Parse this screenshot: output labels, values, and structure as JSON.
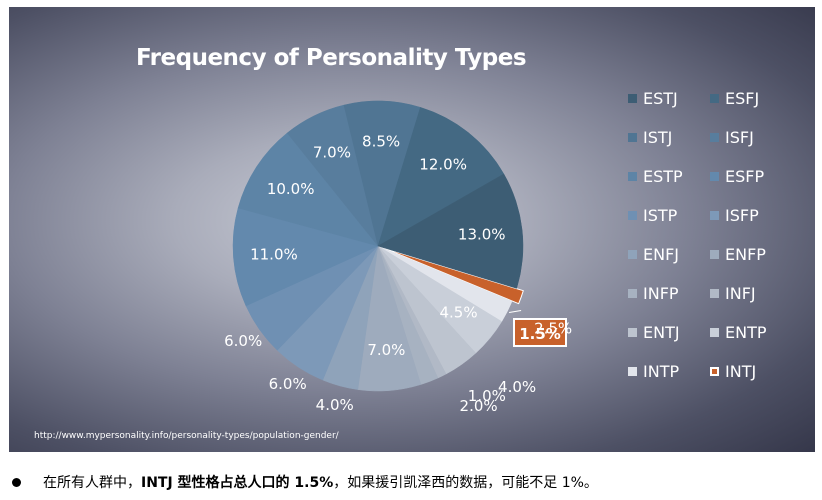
{
  "chart_data": {
    "type": "pie",
    "title": "Frequency of Personality Types",
    "slices": [
      {
        "label": "INTJ",
        "value": 1.5,
        "display": "1.5%",
        "color": "#c8612b"
      },
      {
        "label": "INTP",
        "value": 2.5,
        "display": "2.5%",
        "color": "#e2e5ec"
      },
      {
        "label": "ENTP",
        "value": 4.5,
        "display": "4.5%",
        "color": "#c9cfd9"
      },
      {
        "label": "ENTJ",
        "value": 4.0,
        "display": "4.0%",
        "color": "#bdc4cf"
      },
      {
        "label": "INFJ",
        "value": 1.0,
        "display": "1.0%",
        "color": "#b1b9c6"
      },
      {
        "label": "INFP",
        "value": 2.0,
        "display": "2.0%",
        "color": "#a7b2c1"
      },
      {
        "label": "ENFP",
        "value": 7.0,
        "display": "7.0%",
        "color": "#9eabbd"
      },
      {
        "label": "ENFJ",
        "value": 4.0,
        "display": "4.0%",
        "color": "#8fa3ba"
      },
      {
        "label": "ISFP",
        "value": 6.0,
        "display": "6.0%",
        "color": "#7d99b8"
      },
      {
        "label": "ISTP",
        "value": 6.0,
        "display": "6.0%",
        "color": "#6f90b3"
      },
      {
        "label": "ESFP",
        "value": 11.0,
        "display": "11.0%",
        "color": "#6389ad"
      },
      {
        "label": "ESTP",
        "value": 10.0,
        "display": "10.0%",
        "color": "#5d84a6"
      },
      {
        "label": "ISFJ",
        "value": 7.0,
        "display": "7.0%",
        "color": "#587d9d"
      },
      {
        "label": "ISTJ",
        "value": 8.5,
        "display": "8.5%",
        "color": "#507593"
      },
      {
        "label": "ESFJ",
        "value": 12.0,
        "display": "12.0%",
        "color": "#446983"
      },
      {
        "label": "ESTJ",
        "value": 13.0,
        "display": "13.0%",
        "color": "#3d5d74"
      }
    ],
    "highlight": "INTJ",
    "legend_order": [
      "ESTJ",
      "ESFJ",
      "ISTJ",
      "ISFJ",
      "ESTP",
      "ESFP",
      "ISTP",
      "ISFP",
      "ENFJ",
      "ENFP",
      "INFP",
      "INFJ",
      "ENTJ",
      "ENTP",
      "INTP",
      "INTJ"
    ],
    "legend_placement": "right"
  },
  "source_url": "http://www.mypersonality.info/personality-types/population-gender/",
  "note": {
    "prefix": "在所有人群中，",
    "bold": "INTJ 型性格占总人口的 1.5%",
    "suffix": "，如果援引凯泽西的数据，可能不足 1%。"
  }
}
